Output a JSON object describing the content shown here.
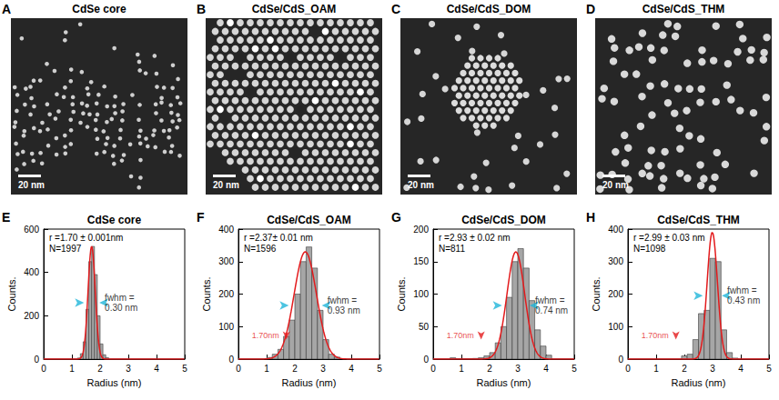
{
  "images": [
    {
      "panel": "A",
      "title": "CdSe core",
      "scale_bar": "20 nm"
    },
    {
      "panel": "B",
      "title": "CdSe/CdS_OAM",
      "scale_bar": "20 nm"
    },
    {
      "panel": "C",
      "title": "CdSe/CdS_DOM",
      "scale_bar": "20 nm"
    },
    {
      "panel": "D",
      "title": "CdSe/CdS_THM",
      "scale_bar": "20 nm"
    }
  ],
  "chart_data": [
    {
      "type": "histogram",
      "panel": "E",
      "title": "CdSe core",
      "x_label": "Radius (nm)",
      "y_label": "Counts.",
      "bins": [
        1.2,
        1.3,
        1.4,
        1.5,
        1.6,
        1.7,
        1.8,
        1.9,
        2.0,
        2.1,
        2.2,
        2.3
      ],
      "values": [
        5,
        25,
        80,
        230,
        450,
        520,
        390,
        200,
        70,
        20,
        7
      ],
      "color": "#a6a6a6",
      "fit": {
        "center": 1.7,
        "fwhm": 0.3,
        "peak": 520,
        "color": "#e31a1c"
      },
      "annotations": {
        "r": "r =1.70 ± 0.001nm",
        "n": "N=1997",
        "fwhm": "fwhm = 0.30 nm"
      },
      "xlim": [
        0,
        5
      ],
      "xticks": [
        0,
        1,
        2,
        3,
        4,
        5
      ],
      "ylim": [
        0,
        600
      ],
      "yticks": [
        0,
        200,
        400,
        600
      ],
      "grid": false
    },
    {
      "type": "histogram",
      "panel": "F",
      "title": "CdSe/CdS_OAM",
      "x_label": "Radius (nm)",
      "y_label": "Counts.",
      "bins": [
        1.0,
        1.2,
        1.4,
        1.6,
        1.8,
        2.0,
        2.2,
        2.4,
        2.6,
        2.8,
        3.0,
        3.2,
        3.4,
        3.6
      ],
      "values": [
        5,
        15,
        30,
        70,
        120,
        200,
        300,
        345,
        280,
        150,
        60,
        15,
        6
      ],
      "color": "#a6a6a6",
      "fit": {
        "center": 2.37,
        "fwhm": 0.93,
        "peak": 330,
        "color": "#e31a1c"
      },
      "reference": {
        "x": 1.7,
        "label": "1.70nm"
      },
      "annotations": {
        "r": "r =2.37± 0.01 nm",
        "n": "N=1596",
        "fwhm": "fwhm = 0.93 nm"
      },
      "xlim": [
        0,
        5
      ],
      "xticks": [
        0,
        1,
        2,
        3,
        4,
        5
      ],
      "ylim": [
        0,
        400
      ],
      "yticks": [
        0,
        100,
        200,
        300,
        400
      ],
      "grid": false
    },
    {
      "type": "histogram",
      "panel": "G",
      "title": "CdSe/CdS_DOM",
      "x_label": "Radius (nm)",
      "y_label": "Counts.",
      "bins": [
        0.6,
        0.8,
        1.0,
        1.2,
        1.4,
        1.6,
        1.8,
        2.0,
        2.2,
        2.4,
        2.6,
        2.8,
        3.0,
        3.2,
        3.4,
        3.6,
        3.8,
        4.0,
        4.2
      ],
      "values": [
        2,
        0,
        0,
        0,
        1,
        2,
        5,
        10,
        25,
        50,
        95,
        150,
        170,
        140,
        90,
        45,
        20,
        6
      ],
      "color": "#a6a6a6",
      "fit": {
        "center": 2.93,
        "fwhm": 0.74,
        "peak": 165,
        "color": "#e31a1c"
      },
      "reference": {
        "x": 1.7,
        "label": "1.70nm"
      },
      "annotations": {
        "r": "r =2.93 ± 0.02 nm",
        "n": "N=811",
        "fwhm": "fwhm = 0.74 nm"
      },
      "xlim": [
        0,
        5
      ],
      "xticks": [
        0,
        1,
        2,
        3,
        4,
        5
      ],
      "ylim": [
        0,
        200
      ],
      "yticks": [
        0,
        50,
        100,
        150,
        200
      ],
      "grid": false
    },
    {
      "type": "histogram",
      "panel": "H",
      "title": "CdSe/CdS_THM",
      "x_label": "Radius (nm)",
      "y_label": "Counts.",
      "bins": [
        1.9,
        2.1,
        2.3,
        2.5,
        2.7,
        2.9,
        3.1,
        3.3,
        3.5,
        3.7,
        3.9
      ],
      "values": [
        10,
        15,
        60,
        140,
        150,
        310,
        300,
        90,
        20,
        3
      ],
      "color": "#a6a6a6",
      "fit": {
        "center": 2.99,
        "fwhm": 0.43,
        "peak": 390,
        "color": "#e31a1c"
      },
      "reference": {
        "x": 1.7,
        "label": "1.70nm"
      },
      "annotations": {
        "r": "r =2.99 ± 0.03 nm",
        "n": "N=1098",
        "fwhm": "fwhm = 0.43 nm"
      },
      "xlim": [
        0,
        5
      ],
      "xticks": [
        0,
        1,
        2,
        3,
        4,
        5
      ],
      "ylim": [
        0,
        400
      ],
      "yticks": [
        0,
        100,
        200,
        300,
        400
      ],
      "grid": false
    }
  ]
}
